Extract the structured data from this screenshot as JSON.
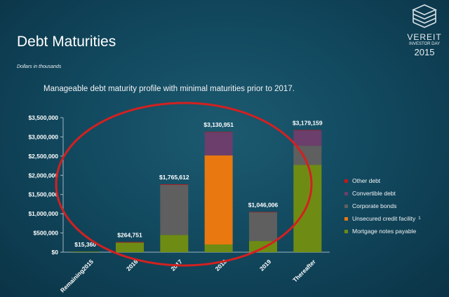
{
  "header": {
    "title": "Debt Maturities",
    "units": "Dollars in  thousands",
    "tagline": "Manageable debt maturity profile with minimal maturities prior to 2017."
  },
  "logo": {
    "brand": "VEREIT",
    "event": "INVESTOR DAY",
    "year": "2015",
    "icon": "stacked-cube-icon"
  },
  "chart_data": {
    "type": "bar",
    "stacked": true,
    "categories": [
      "Remaining2015",
      "2016",
      "2017",
      "2018",
      "2019",
      "Thereafter"
    ],
    "totals_labels": [
      "$15,360",
      "$264,751",
      "$1,765,612",
      "$3,130,951",
      "$1,046,006",
      "$3,179,159"
    ],
    "totals": [
      15360,
      264751,
      1765612,
      3130951,
      1046006,
      3179159
    ],
    "series": [
      {
        "name": "Mortgage notes payable",
        "color": "#6e8c14",
        "values": [
          15360,
          250000,
          450000,
          200000,
          290000,
          2270000
        ]
      },
      {
        "name": "Unsecured credit facility",
        "superscript": "1",
        "color": "#e8780f",
        "values": [
          0,
          0,
          0,
          2320000,
          0,
          0
        ]
      },
      {
        "name": "Corporate bonds",
        "color": "#5f5f5f",
        "values": [
          0,
          0,
          1300000,
          0,
          750000,
          500000
        ]
      },
      {
        "name": "Convertible debt",
        "color": "#6b3e6b",
        "values": [
          0,
          0,
          0,
          600000,
          0,
          400000
        ]
      },
      {
        "name": "Other debt",
        "color": "#c21818",
        "values": [
          0,
          14751,
          15612,
          10951,
          6006,
          9159
        ]
      }
    ],
    "legend_order": [
      "Other debt",
      "Convertible debt",
      "Corporate bonds",
      "Unsecured credit facility",
      "Mortgage notes payable"
    ],
    "ylim": [
      0,
      3500000
    ],
    "yticks": [
      0,
      500000,
      1000000,
      1500000,
      2000000,
      2500000,
      3000000,
      3500000
    ],
    "ytick_labels": [
      "$0",
      "$500,000",
      "$1,000,000",
      "$1,500,000",
      "$2,000,000",
      "$2,500,000",
      "$3,000,000",
      "$3,500,000"
    ],
    "legend_position": "right",
    "highlight": "red ellipse around 2016–2019 bars",
    "grid": false
  }
}
